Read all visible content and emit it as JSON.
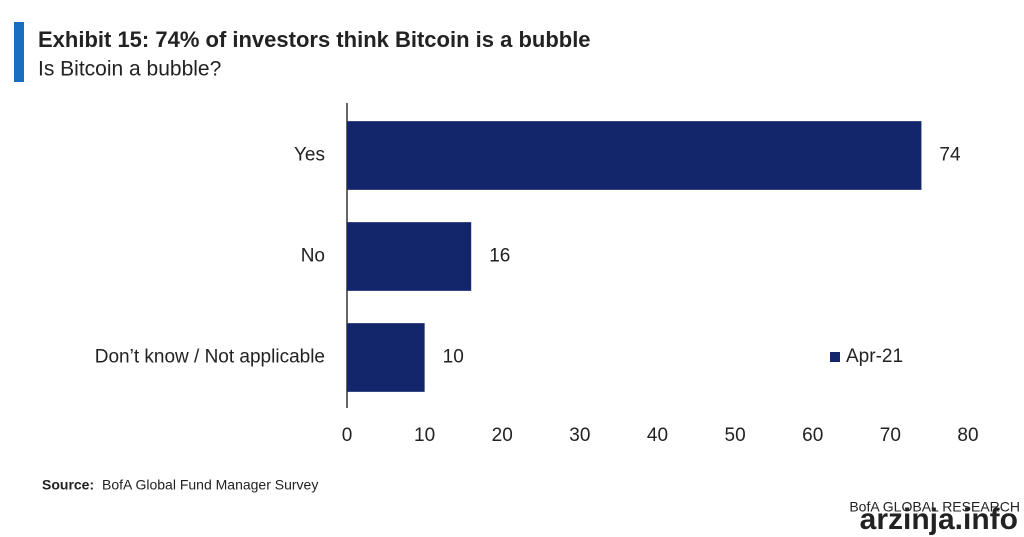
{
  "chart_data": {
    "type": "bar",
    "orientation": "horizontal",
    "title": "Exhibit 15: 74% of investors think Bitcoin is a bubble",
    "subtitle": "Is Bitcoin a bubble?",
    "categories": [
      "Yes",
      "No",
      "Don’t know / Not applicable"
    ],
    "series": [
      {
        "name": "Apr-21",
        "color": "#13256b",
        "values": [
          74,
          16,
          10
        ]
      }
    ],
    "xlim": [
      0,
      80
    ],
    "xticks": [
      0,
      10,
      20,
      30,
      40,
      50,
      60,
      70,
      80
    ],
    "grid": false,
    "legend": "right",
    "source_label": "Source:",
    "source": "BofA Global Fund Manager Survey",
    "brand": "BofA GLOBAL RESEARCH",
    "watermark": "arzinja.info"
  }
}
